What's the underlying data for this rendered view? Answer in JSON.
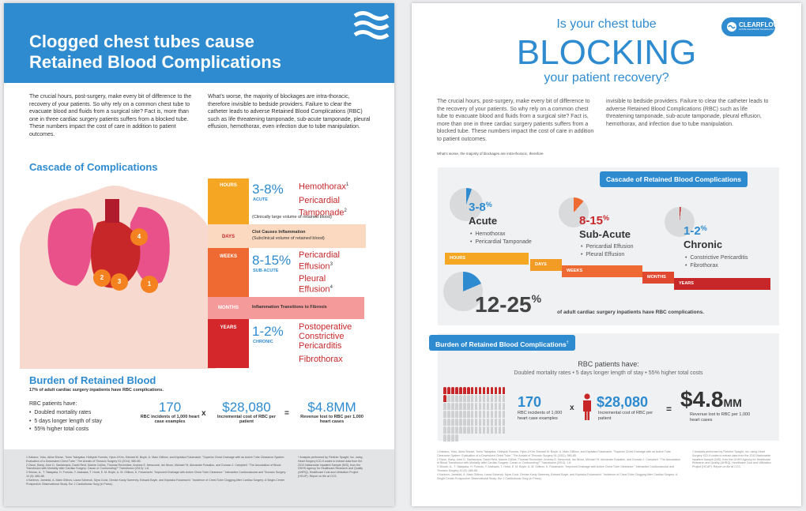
{
  "colors": {
    "brand_blue": "#2e8bd0",
    "accent_red": "#c8272a",
    "stage_hours": "#f5a623",
    "stage_days": "#fad9c0",
    "stage_weeks": "#ef6a33",
    "stage_months": "#f59a9a",
    "stage_years": "#d3272b"
  },
  "left_page": {
    "title_line1": "Clogged chest tubes cause",
    "title_line2": "Retained Blood Complications",
    "intro_left": "The crucial hours, post-surgery, make every bit of difference to the recovery of your patients. So why rely on a common chest tube to evacuate blood and fluids from a surgical site? Fact is, more than one in three cardiac surgery patients suffers from a blocked tube. These numbers impact the cost of care in addition to patient outcomes.",
    "intro_right": "What's worse, the majority of blockages are intra-thoracic, therefore invisible to bedside providers. Failure to clear the catheter leads to adverse Retained Blood Complications (RBC) such as life threatening tamponade, sub-acute tamponade, pleural effusion, hemothorax, even infection due to tube manipulation.",
    "cascade_heading": "Cascade of Complications",
    "annotations": [
      "4",
      "2",
      "3",
      "1"
    ],
    "stages": {
      "hours": "HOURS",
      "days": "DAYS",
      "weeks": "WEEKS",
      "months": "MONTHS",
      "years": "YEARS"
    },
    "acute_pct": "3-8%",
    "acute_label": "ACUTE",
    "acute_items": [
      "Hemothorax",
      "Pericardial Tamponade"
    ],
    "acute_sup": [
      "1",
      "2"
    ],
    "acute_note": "(Clinically large volume of retained blood)",
    "days_note_title": "Clot Causes Inflammation",
    "days_note_sub": "(Subclinical volume of retained blood)",
    "subacute_pct": "8-15%",
    "subacute_label": "SUB-ACUTE",
    "subacute_items": [
      "Pericardial Effusion",
      "Pleural Effusion"
    ],
    "subacute_sup": [
      "3",
      "4"
    ],
    "months_note": "Inflammation Transitions to Fibrosis",
    "chronic_pct": "1-2%",
    "chronic_label": "CHRONIC",
    "chronic_items": [
      "Postoperative Constrictive Pericarditis",
      "Fibrothorax"
    ],
    "burden_heading": "Burden of Retained Blood",
    "burden_sub": "17% of adult cardiac surgery inpatients have RBC complications.",
    "rbc_have": "RBC patients have:",
    "rbc_bullets": [
      "Doubled mortality rates",
      "5 days longer length of stay",
      "55% higher total costs"
    ],
    "calc": {
      "n1": "170",
      "l1": "RBC incidents of 1,000 heart case examples",
      "op1": "x",
      "n2": "$28,080",
      "l2": "Incremental cost of RBC per patient",
      "op2": "=",
      "n3": "$4.8MM",
      "l3": "Revenue lost to RBC per 1,000 heart cases"
    },
    "footnotes_left": "1 Kabano, Yoko, Akira Shiose, Tohru Takayaka, Hideyuki Fumoto, Hyun-Il Kim, Edward M. Boyle, A. Marc Gillinov, and Kiyotaka Fukamachi. \"Superior Chest Drainage with an Active Tube Clearance System: Evaluation of a Downsized Chest Tube.\" The Annals of Thoracic Surgery 91 (2011): 580-85.\n2 Dixon, Barry, John D. Santamaria, David Reid, Marnie Collins, Thomas Rechnitzer, Andrew E. Newcomb, Ian Nixon, Michael Yii, Alexander Rosalion, and Duncan J. Campbell. \"The Association of Blood Transfusion with Mortality after Cardiac Surgery: Cause or Confounding?\" Transfusion (2013): 1-6.\n3 Shiose, A., T. Takayaka, H. Fumoto, Y. Arakawa, T. Horai, E. M. Boyle, A. M. Gillinov, K. Fukamachi. \"Improved Drainage with Active Chest Tube Clearance.\" Interactive Cardiovascular and Thoracic Surgery 10 (5): 685-88.\n4 Karimov, Jamshid, A. Mark Gillinov, Laura Schenck, Myra Cook, Denise Kosty Sweeney, Edward Boyle, and Kiyotaka Fukamachi. \"Incidence of Chest Tube Clogging After Cardiac Surgery: A Single-Center Prospective Observational Study. Eur J Cardiothorac Surg (in Press).",
    "footnotes_right": "* Analysis performed by Fletcher Spaght, Inc. using Heart Surgery ICD-9 codes to extract data from the 2010 Nationwide Inpatient Sample (NIS), from the DHHS Agency for Healthcare Research and Quality (AHRQ), Healthcare Cost and Utilization Project (HCUP). Report on file at CCS."
  },
  "right_page": {
    "logo_name": "CLEARFLOW",
    "logo_tagline": "ACTIVE CLEARANCE TECHNOLOGY",
    "head1": "Is your chest tube",
    "head2": "BLOCKING",
    "head3": "your patient recovery?",
    "intro_left": "The crucial hours, post-surgery, make every bit of difference to the recovery of your patients. So why rely on a common chest tube to evacuate blood and fluids from a surgical site? Fact is, more than one in three cardiac surgery patients suffers from a blocked tube. These numbers impact the cost of care in addition to patient outcomes.",
    "intro_tail": "What's worse, the majority of blockages are intra-thoracic, therefore",
    "intro_right": "invisible to bedside providers. Failure to clear the catheter leads to adverse Retained Blood Complications (RBC) such as life threatening tamponade, sub-acute tamponade, pleural effusion, hemothorax, and infection due to tube manipulation.",
    "cascade_tag": "Cascade of Retained Blood Complications",
    "acute": {
      "pct": "3-8",
      "sym": "%",
      "name": "Acute",
      "items": [
        "Hemothorax",
        "Pericardial Tamponade"
      ],
      "pie_share": 0.055
    },
    "subacute": {
      "pct": "8-15",
      "sym": "%",
      "name": "Sub-Acute",
      "items": [
        "Pericardial Effusion",
        "Pleural Effusion"
      ],
      "pie_share": 0.115
    },
    "chronic": {
      "pct": "1-2",
      "sym": "%",
      "name": "Chronic",
      "items": [
        "Constrictive Pericarditis",
        "Fibrothorax"
      ],
      "pie_share": 0.015
    },
    "steps": [
      "HOURS",
      "DAYS",
      "WEEKS",
      "MONTHS",
      "YEARS"
    ],
    "big_pct": "12-25",
    "big_sym": "%",
    "big_pie_share": 0.185,
    "big_text": "of adult cardiac surgery inpatients have RBC complications.",
    "burden_tag": "Burden of Retained Blood Complications",
    "burden_sup": "†",
    "rbc_have": "RBC patients have:",
    "rbc_line": "Doubled mortality rates  •  5 days longer length of stay  •  55% higher total costs",
    "calc": {
      "n1": "170",
      "l1": "RBC incidents of 1,000 heart case examples",
      "op1": "x",
      "n2": "$28,080",
      "l2": "Incremental cost of RBC per patient",
      "op2": "=",
      "n3": "$4.8",
      "n3suffix": "MM",
      "l3": "Revenue lost to RBC per 1,000 heart cases"
    },
    "people_total": 100,
    "people_red": 17,
    "footnotes_left": "1 Kabano, Yoko, Akira Shiose, Tohru Takayaka, Hideyuki Fumoto, Hyun-Il Kim, Edward M. Boyle, A. Marc Gillinov, and Kiyotaka Fukamachi. \"Superior Chest Drainage with an Active Tube Clearance System: Evaluation of a Downsized Chest Tube.\" The Annals of Thoracic Surgery 91 (2011): 580-85.\n2 Dixon, Barry, John D. Santamaria, David Reid, Marnie Collins, Thomas Rechnitzer, Andrew E. Newcomb, Ian Nixon, Michael Yii, Alexander Rosalion, and Duncan J. Campbell. \"The Association of Blood Transfusion with Mortality after Cardiac Surgery: Cause or Confounding?\" Transfusion (2013): 1-6.\n3 Shiose, A., T. Takayaka, H. Fumoto, Y. Arakawa, T. Horai, E. M. Boyle, A. M. Gillinov, K. Fukamachi. \"Improved Drainage with Active Chest Tube Clearance.\" Interactive Cardiovascular and Thoracic Surgery 10 (5): 685-88.\n4 Karimov, Jamshid, A. Mark Gillinov, Laura Schenck, Myra Cook, Denise Kosty Sweeney, Edward Boyle, and Kiyotaka Fukamachi. \"Incidence of Chest Tube Clogging After Cardiac Surgery: A Single-Center Prospective Observational Study. Eur J Cardiothorac Surg (in Press).",
    "footnotes_right": "† Analysis performed by Fletcher Spaght, Inc. using Heart Surgery ICD-9 codes to extract data from the 2010 Nationwide Inpatient Sample (NIS), from the DHHS Agency for Healthcare Research and Quality (AHRQ), Healthcare Cost and Utilization Project (HCUP). Report on file at CCS."
  }
}
